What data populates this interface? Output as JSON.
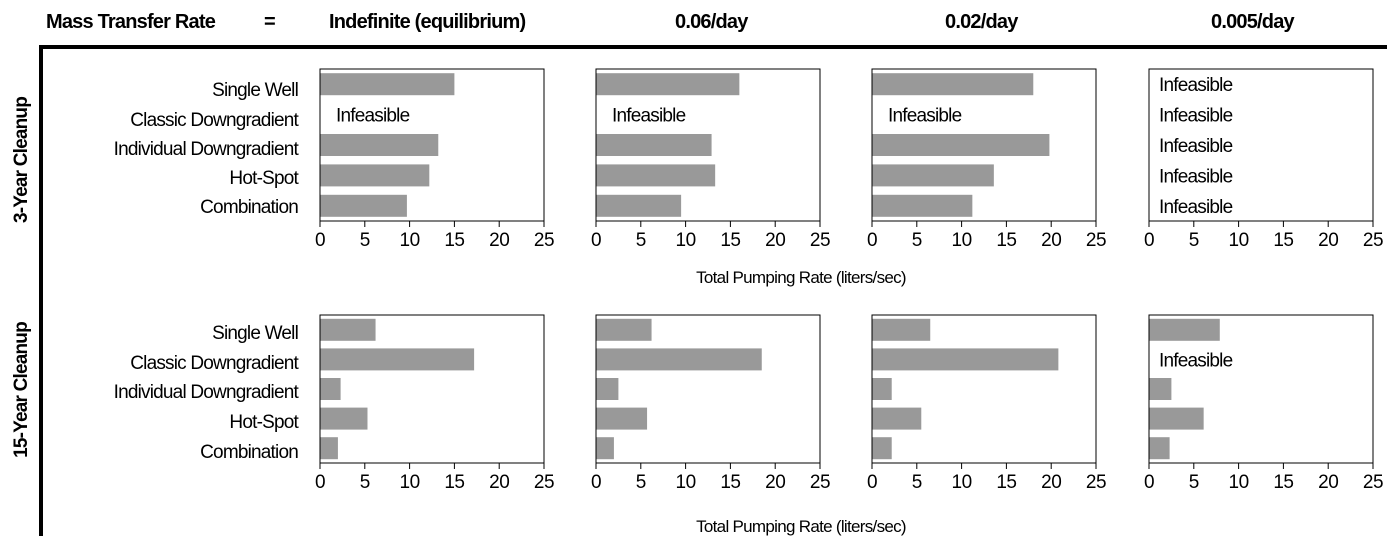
{
  "header": {
    "label": "Mass Transfer Rate",
    "equals": "=",
    "rates": [
      "Indefinite (equilibrium)",
      "0.06/day",
      "0.02/day",
      "0.005/day"
    ]
  },
  "row_labels": [
    "3-Year Cleanup",
    "15-Year Cleanup"
  ],
  "xlabel": "Total Pumping Rate (liters/sec)",
  "infeasible_label": "Infeasible",
  "colors": {
    "bar": "#999999",
    "frame": "#000000"
  },
  "chart_data": {
    "type": "bar",
    "orientation": "horizontal",
    "categories": [
      "Single Well",
      "Classic Downgradient",
      "Individual Downgradient",
      "Hot-Spot",
      "Combination"
    ],
    "xlim": [
      0,
      25
    ],
    "xticks": [
      0,
      5,
      10,
      15,
      20,
      25
    ],
    "xlabel": "Total Pumping Rate (liters/sec)",
    "panels": [
      {
        "row": "3-Year Cleanup",
        "rate": "Indefinite (equilibrium)",
        "values": [
          15,
          null,
          13.2,
          12.2,
          9.7
        ]
      },
      {
        "row": "3-Year Cleanup",
        "rate": "0.06/day",
        "values": [
          16,
          null,
          12.9,
          13.3,
          9.5
        ]
      },
      {
        "row": "3-Year Cleanup",
        "rate": "0.02/day",
        "values": [
          18,
          null,
          19.8,
          13.6,
          11.2
        ]
      },
      {
        "row": "3-Year Cleanup",
        "rate": "0.005/day",
        "values": [
          null,
          null,
          null,
          null,
          null
        ]
      },
      {
        "row": "15-Year Cleanup",
        "rate": "Indefinite (equilibrium)",
        "values": [
          6.2,
          17.2,
          2.3,
          5.3,
          2
        ]
      },
      {
        "row": "15-Year Cleanup",
        "rate": "0.06/day",
        "values": [
          6.2,
          18.5,
          2.5,
          5.7,
          2
        ]
      },
      {
        "row": "15-Year Cleanup",
        "rate": "0.02/day",
        "values": [
          6.5,
          20.8,
          2.2,
          5.5,
          2.2
        ]
      },
      {
        "row": "15-Year Cleanup",
        "rate": "0.005/day",
        "values": [
          7.9,
          null,
          2.5,
          6.1,
          2.3
        ]
      }
    ]
  }
}
